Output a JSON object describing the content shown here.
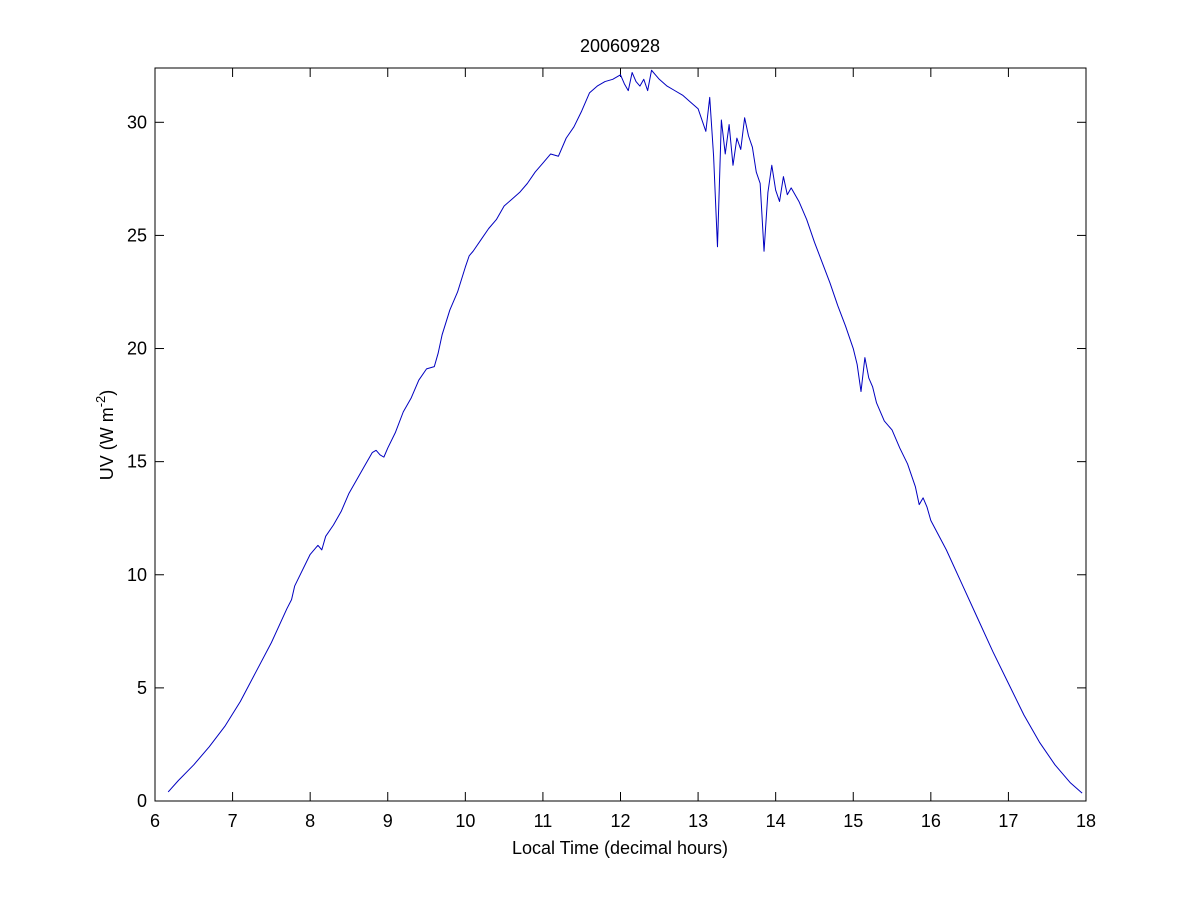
{
  "chart_data": {
    "type": "line",
    "title": "20060928",
    "xlabel": "Local Time (decimal hours)",
    "ylabel": {
      "prefix": "UV (W m",
      "superscript": "-2",
      "suffix": ")"
    },
    "xlim": [
      6,
      18
    ],
    "ylim": [
      0,
      32.4
    ],
    "xticks": [
      6,
      7,
      8,
      9,
      10,
      11,
      12,
      13,
      14,
      15,
      16,
      17,
      18
    ],
    "yticks": [
      0,
      5,
      10,
      15,
      20,
      25,
      30
    ],
    "grid": false,
    "legend": "none",
    "line_color": "#0000c0",
    "series": [
      {
        "x": [
          6.17,
          6.3,
          6.5,
          6.7,
          6.9,
          7.1,
          7.3,
          7.5,
          7.7,
          7.76,
          7.8,
          8.0,
          8.1,
          8.15,
          8.2,
          8.3,
          8.4,
          8.5,
          8.6,
          8.7,
          8.8,
          8.85,
          8.9,
          8.95,
          9.0,
          9.1,
          9.2,
          9.3,
          9.4,
          9.5,
          9.6,
          9.65,
          9.7,
          9.8,
          9.9,
          10.0,
          10.05,
          10.1,
          10.2,
          10.3,
          10.4,
          10.5,
          10.6,
          10.7,
          10.8,
          10.9,
          11.0,
          11.1,
          11.2,
          11.3,
          11.4,
          11.5,
          11.6,
          11.7,
          11.8,
          11.9,
          12.0,
          12.05,
          12.1,
          12.15,
          12.2,
          12.25,
          12.3,
          12.35,
          12.4,
          12.45,
          12.5,
          12.6,
          12.7,
          12.8,
          12.9,
          13.0,
          13.1,
          13.15,
          13.2,
          13.25,
          13.3,
          13.35,
          13.4,
          13.45,
          13.5,
          13.55,
          13.6,
          13.65,
          13.7,
          13.75,
          13.8,
          13.85,
          13.9,
          13.95,
          14.0,
          14.05,
          14.1,
          14.15,
          14.2,
          14.3,
          14.4,
          14.5,
          14.6,
          14.7,
          14.8,
          14.9,
          15.0,
          15.05,
          15.1,
          15.15,
          15.2,
          15.25,
          15.3,
          15.4,
          15.5,
          15.6,
          15.7,
          15.8,
          15.85,
          15.9,
          15.95,
          16.0,
          16.2,
          16.4,
          16.6,
          16.8,
          17.0,
          17.2,
          17.4,
          17.6,
          17.8,
          17.95
        ],
        "y": [
          0.4,
          0.9,
          1.6,
          2.4,
          3.3,
          4.4,
          5.7,
          7.0,
          8.5,
          8.9,
          9.5,
          10.9,
          11.3,
          11.1,
          11.7,
          12.2,
          12.8,
          13.6,
          14.2,
          14.8,
          15.4,
          15.5,
          15.3,
          15.2,
          15.6,
          16.3,
          17.2,
          17.8,
          18.6,
          19.1,
          19.2,
          19.8,
          20.6,
          21.7,
          22.5,
          23.6,
          24.1,
          24.3,
          24.8,
          25.3,
          25.7,
          26.3,
          26.6,
          26.9,
          27.3,
          27.8,
          28.2,
          28.6,
          28.5,
          29.3,
          29.8,
          30.5,
          31.3,
          31.6,
          31.8,
          31.9,
          32.1,
          31.7,
          31.4,
          32.2,
          31.8,
          31.6,
          31.9,
          31.4,
          32.3,
          32.1,
          31.9,
          31.6,
          31.4,
          31.2,
          30.9,
          30.6,
          29.6,
          31.1,
          28.5,
          24.5,
          30.1,
          28.6,
          29.9,
          28.1,
          29.3,
          28.8,
          30.2,
          29.4,
          28.9,
          27.8,
          27.3,
          24.3,
          26.9,
          28.1,
          27.0,
          26.5,
          27.6,
          26.8,
          27.1,
          26.5,
          25.7,
          24.7,
          23.8,
          22.9,
          21.9,
          21.0,
          20.0,
          19.3,
          18.1,
          19.6,
          18.7,
          18.3,
          17.6,
          16.8,
          16.4,
          15.6,
          14.9,
          13.9,
          13.1,
          13.4,
          13.0,
          12.4,
          11.1,
          9.6,
          8.1,
          6.6,
          5.2,
          3.8,
          2.6,
          1.6,
          0.8,
          0.35
        ]
      }
    ]
  }
}
